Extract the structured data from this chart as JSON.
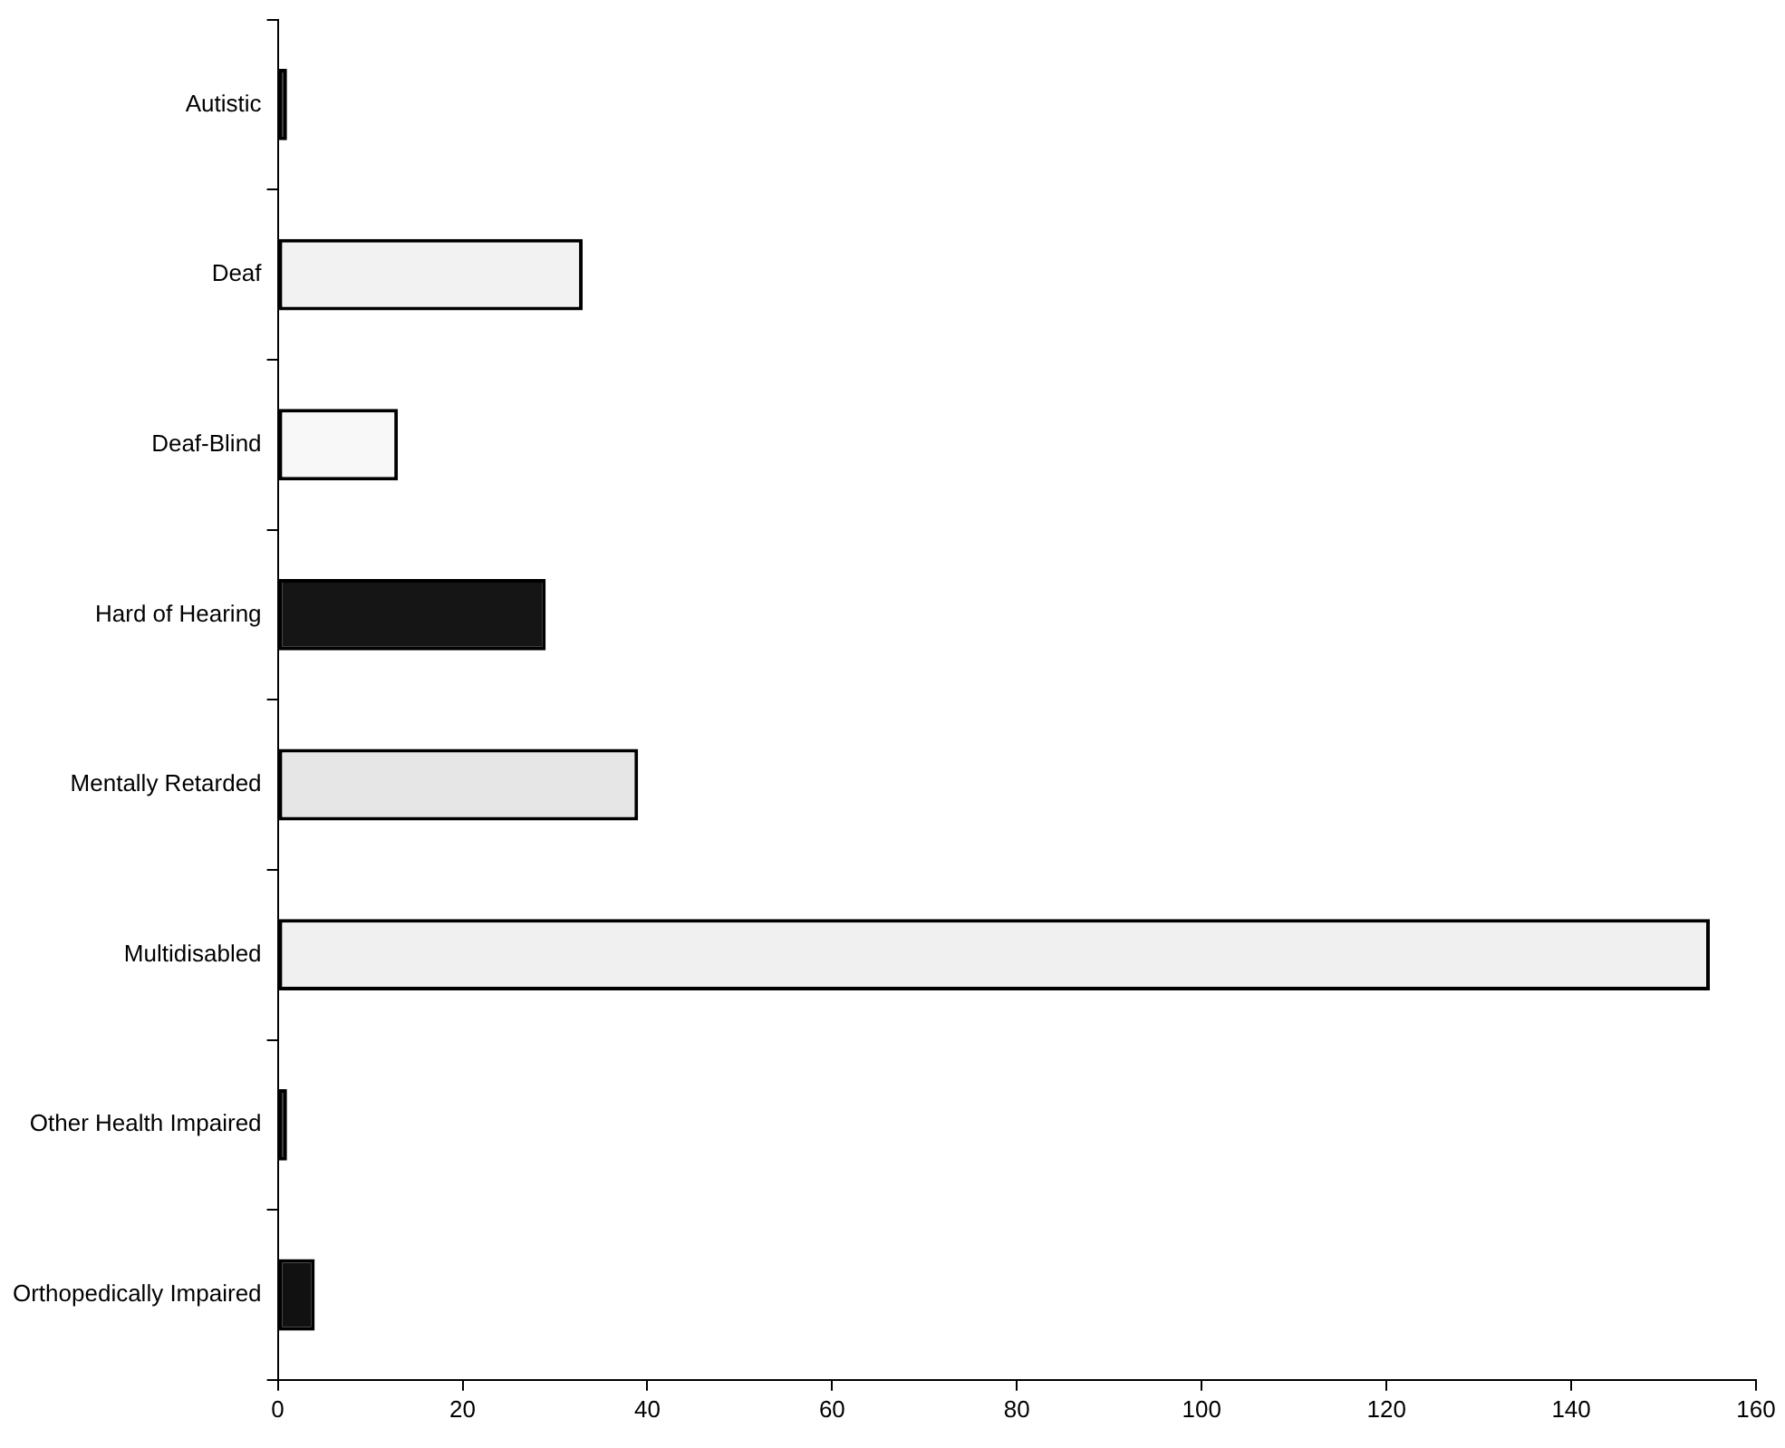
{
  "chart_data": {
    "type": "bar",
    "orientation": "horizontal",
    "categories": [
      "Autistic",
      "Deaf",
      "Deaf-Blind",
      "Hard of Hearing",
      "Mentally Retarded",
      "Multidisabled",
      "Other Health Impaired",
      "Orthopedically Impaired"
    ],
    "values": [
      1,
      33,
      13,
      29,
      39,
      155,
      1,
      4
    ],
    "colors": [
      "#111111",
      "#f2f2f2",
      "#f8f8f8",
      "#151515",
      "#e6e6e6",
      "#f0f0f0",
      "#111111",
      "#111111"
    ],
    "xlim": [
      0,
      160
    ],
    "xticks": [
      0,
      20,
      40,
      60,
      80,
      100,
      120,
      140,
      160
    ]
  }
}
